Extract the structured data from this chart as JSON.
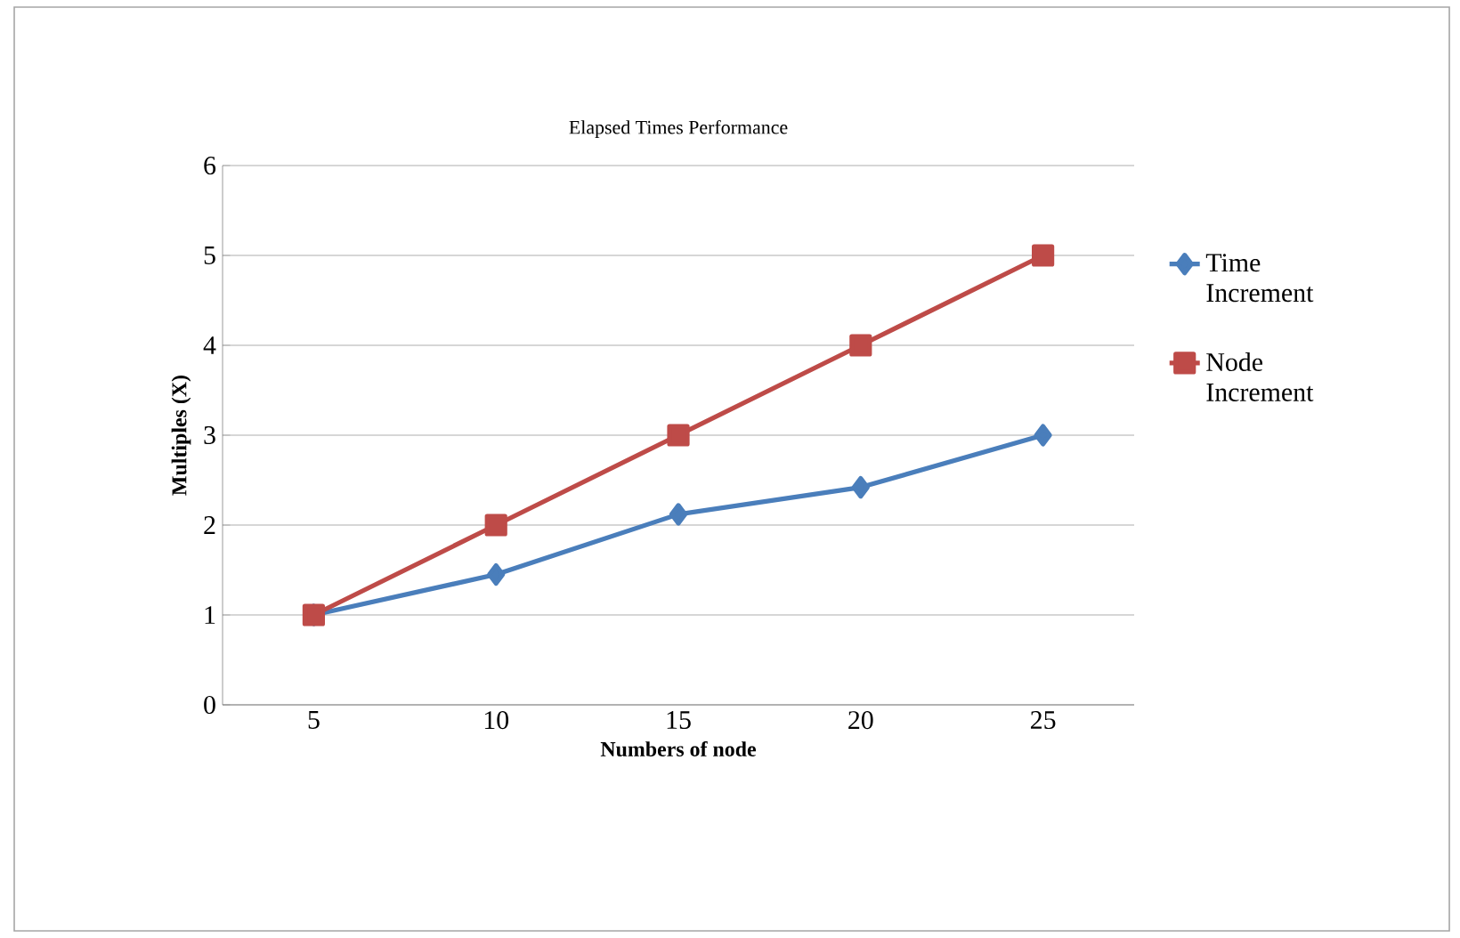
{
  "chart_data": {
    "type": "line",
    "title": "Elapsed Times Performance",
    "xlabel": "Numbers of node",
    "ylabel": "Multiples (X)",
    "categories": [
      "5",
      "10",
      "15",
      "20",
      "25"
    ],
    "series": [
      {
        "name": "Time Increment",
        "color": "#4a7ebb",
        "marker": "diamond",
        "values": [
          1,
          1.45,
          2.12,
          2.42,
          3.0
        ]
      },
      {
        "name": "Node Increment",
        "color": "#be4b48",
        "marker": "square",
        "values": [
          1,
          2,
          3,
          4,
          5
        ]
      }
    ],
    "ylim": [
      0,
      6
    ],
    "yticks": [
      0,
      1,
      2,
      3,
      4,
      5,
      6
    ],
    "grid": "y",
    "legend": "right",
    "line_style": "solid"
  }
}
